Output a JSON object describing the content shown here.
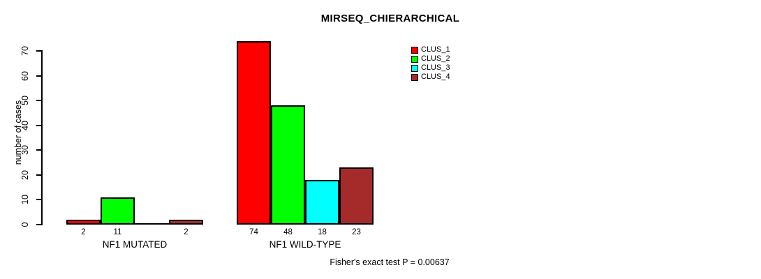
{
  "chart_data": {
    "type": "bar",
    "title": "MIRSEQ_CHIERARCHICAL",
    "ylabel": "number of cases",
    "xlabel": "",
    "ylim": [
      0,
      70
    ],
    "ytick_step": 10,
    "yticks": [
      0,
      10,
      20,
      30,
      40,
      50,
      60,
      70
    ],
    "grid": false,
    "categories": [
      "NF1 MUTATED",
      "NF1 WILD-TYPE"
    ],
    "series": [
      {
        "name": "CLUS_1",
        "color": "#ff0000",
        "values": [
          2,
          74
        ]
      },
      {
        "name": "CLUS_2",
        "color": "#00ff00",
        "values": [
          11,
          48
        ]
      },
      {
        "name": "CLUS_3",
        "color": "#00ffff",
        "values": [
          0,
          18
        ]
      },
      {
        "name": "CLUS_4",
        "color": "#a52a2a",
        "values": [
          2,
          23
        ]
      }
    ],
    "bar_value_labels": {
      "shown_for_nonzero_only": true
    },
    "legend": {
      "position": "top-right",
      "entries": [
        "CLUS_1",
        "CLUS_2",
        "CLUS_3",
        "CLUS_4"
      ]
    },
    "annotation": "Fisher's exact test P = 0.00637",
    "colors": {
      "axis": "#000000",
      "text": "#000000",
      "background": "#ffffff"
    }
  }
}
